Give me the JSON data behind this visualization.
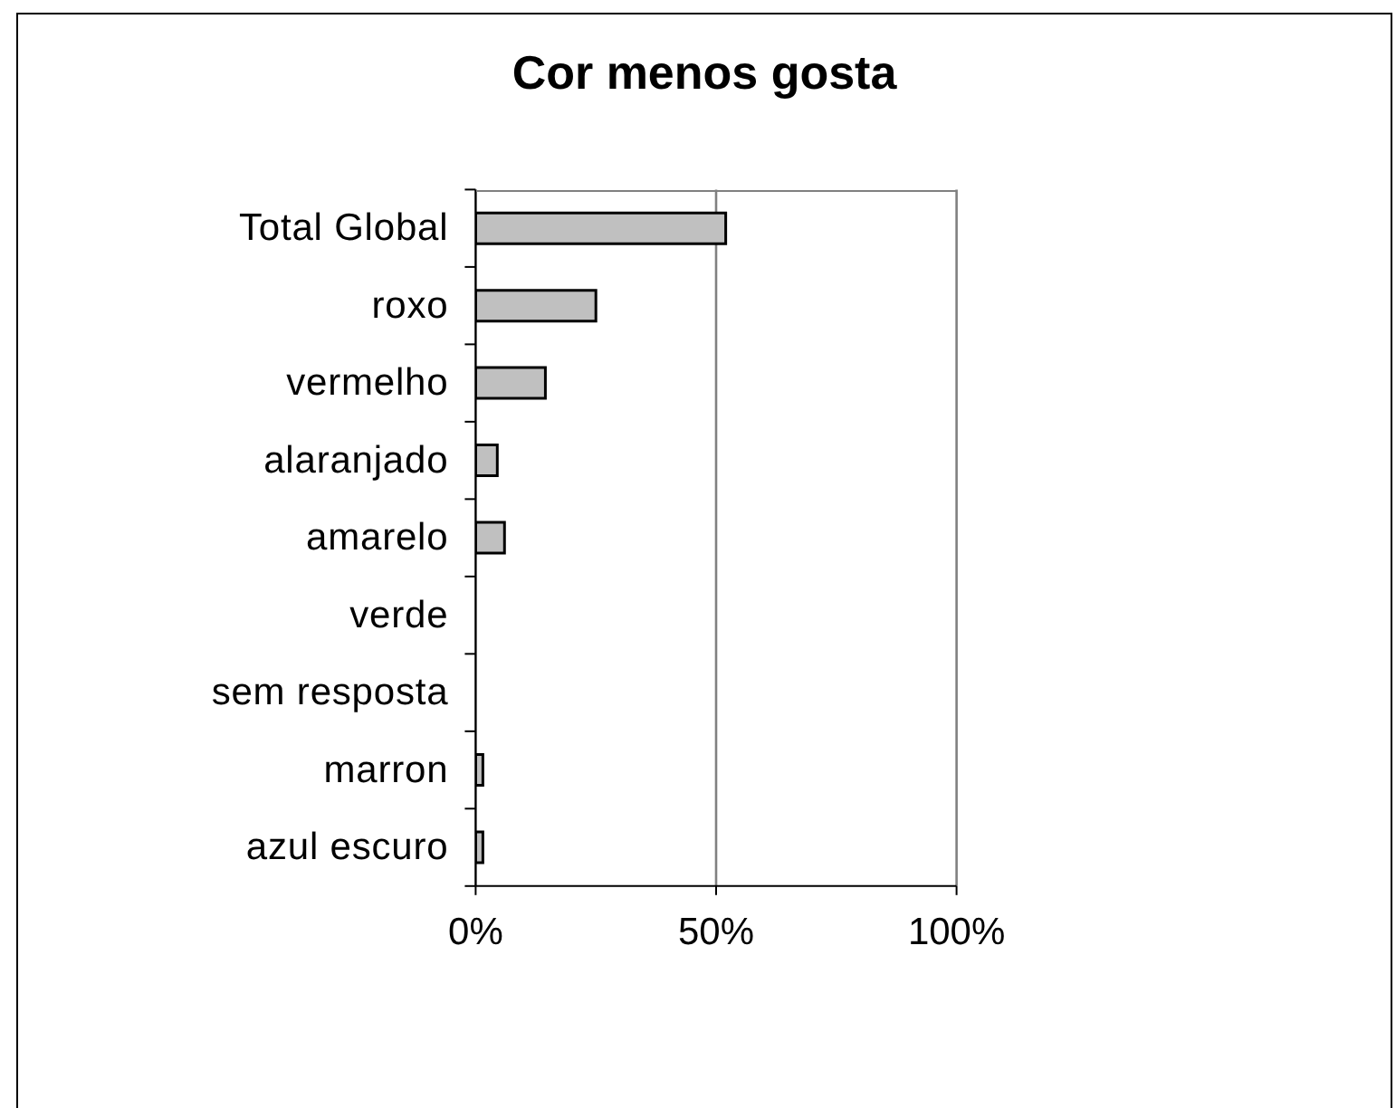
{
  "chart_data": {
    "type": "bar",
    "title": "Cor menos gosta",
    "orientation": "horizontal",
    "categories": [
      "Total Global",
      "roxo",
      "vermelho",
      "alaranjado",
      "amarelo",
      "verde",
      "sem resposta",
      "marron",
      "azul escuro"
    ],
    "values": [
      52,
      25,
      14.5,
      4.5,
      6,
      0,
      0,
      1.5,
      1.5
    ],
    "color": "#c0c0c0",
    "xlim": [
      0,
      100
    ],
    "xticks": [
      {
        "value": 0,
        "label": "0%"
      },
      {
        "value": 50,
        "label": "50%"
      },
      {
        "value": 100,
        "label": "100%"
      }
    ],
    "grid": "x"
  }
}
